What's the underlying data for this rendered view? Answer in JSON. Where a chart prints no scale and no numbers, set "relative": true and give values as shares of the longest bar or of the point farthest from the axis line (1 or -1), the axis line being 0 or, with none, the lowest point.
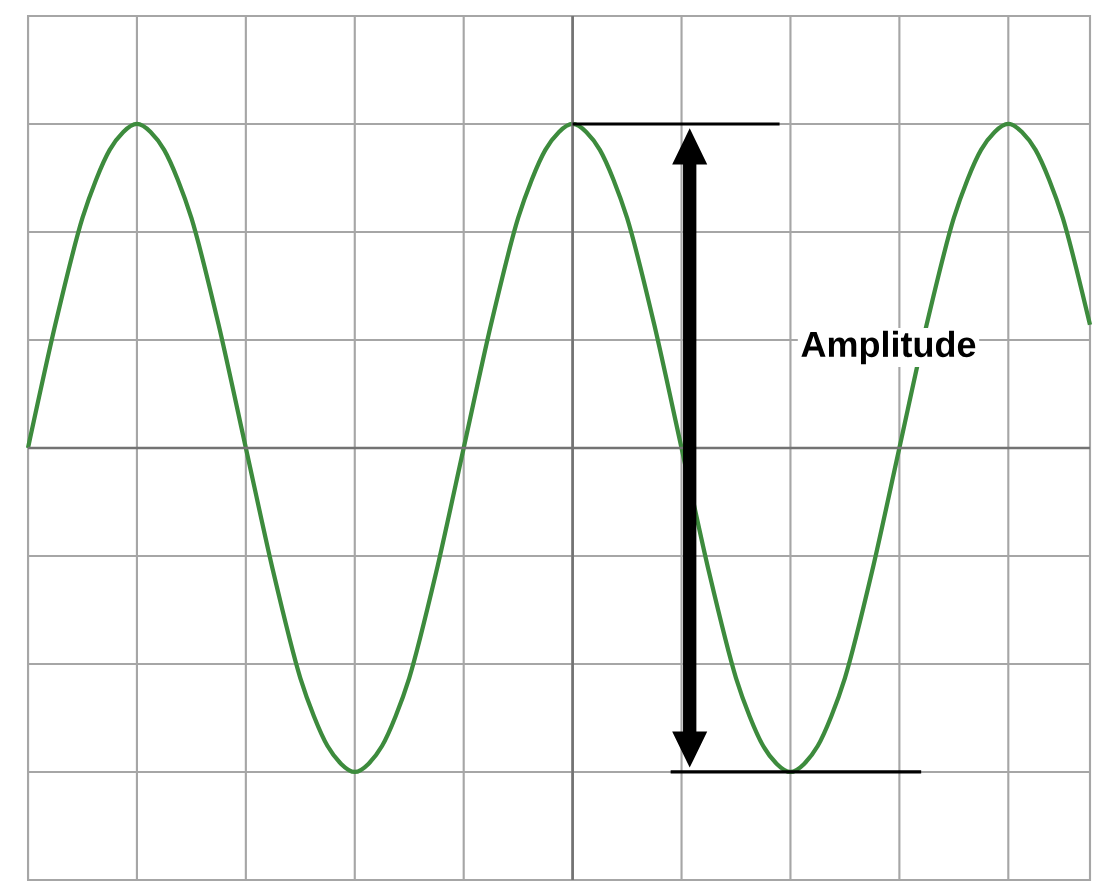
{
  "chart_data": {
    "type": "line",
    "relative": true,
    "grid": true,
    "color": "#3d8b3d",
    "categories": [
      null,
      null,
      null,
      null,
      null,
      null,
      null,
      null,
      null,
      null,
      null,
      null,
      null,
      null,
      null,
      null,
      null,
      null,
      null,
      null,
      null,
      null,
      null,
      null,
      null,
      null,
      null,
      null,
      null,
      null,
      null,
      null,
      null,
      null,
      null,
      null,
      null,
      null,
      null,
      null
    ],
    "values": [
      0,
      0.38,
      0.71,
      0.92,
      1,
      0.92,
      0.71,
      0.38,
      0,
      -0.38,
      -0.71,
      -0.92,
      -1,
      -0.92,
      -0.71,
      -0.38,
      0,
      0.38,
      0.71,
      0.92,
      1,
      0.92,
      0.71,
      0.38,
      0,
      -0.38,
      -0.71,
      -0.92,
      -1,
      -0.92,
      -0.71,
      -0.38,
      0,
      0.38,
      0.71,
      0.92,
      1,
      0.92,
      0.71,
      0.38
    ],
    "annotations": [
      "Amplitude"
    ]
  }
}
